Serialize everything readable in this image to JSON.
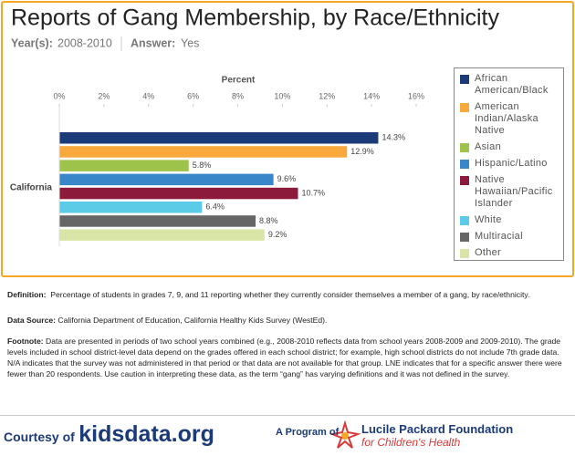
{
  "chart_data": {
    "type": "hbar",
    "title": "Reports of Gang Membership, by Race/Ethnicity",
    "subtitle_year_label": "Year(s):",
    "subtitle_year": "2008-2010",
    "subtitle_answer_label": "Answer:",
    "subtitle_answer": "Yes",
    "x_label": "Percent",
    "categories": [
      "California"
    ],
    "series": [
      {
        "name": "African American/Black",
        "color": "#1b3a78",
        "values": [
          14.3
        ],
        "value_labels": [
          "14.3%"
        ]
      },
      {
        "name": "American Indian/Alaska Native",
        "color": "#f9a93b",
        "values": [
          12.9
        ],
        "value_labels": [
          "12.9%"
        ]
      },
      {
        "name": "Asian",
        "color": "#9dc34a",
        "values": [
          5.8
        ],
        "value_labels": [
          "5.8%"
        ]
      },
      {
        "name": "Hispanic/Latino",
        "color": "#3987c8",
        "values": [
          9.6
        ],
        "value_labels": [
          "9.6%"
        ]
      },
      {
        "name": "Native Hawaiian/Pacific Islander",
        "color": "#8c1b3b",
        "values": [
          10.7
        ],
        "value_labels": [
          "10.7%"
        ]
      },
      {
        "name": "White",
        "color": "#5ccbe8",
        "values": [
          6.4
        ],
        "value_labels": [
          "6.4%"
        ]
      },
      {
        "name": "Multiracial",
        "color": "#666666",
        "values": [
          8.8
        ],
        "value_labels": [
          "8.8%"
        ]
      },
      {
        "name": "Other",
        "color": "#d9e5a6",
        "values": [
          9.2
        ],
        "value_labels": [
          "9.2%"
        ]
      }
    ],
    "xlim": [
      0,
      16
    ],
    "xticks": [
      {
        "value": 0,
        "label": "0%"
      },
      {
        "value": 2,
        "label": "2%"
      },
      {
        "value": 4,
        "label": "4%"
      },
      {
        "value": 6,
        "label": "6%"
      },
      {
        "value": 8,
        "label": "8%"
      },
      {
        "value": 10,
        "label": "10%"
      },
      {
        "value": 12,
        "label": "12%"
      },
      {
        "value": 14,
        "label": "14%"
      },
      {
        "value": 16,
        "label": "16%"
      }
    ],
    "grid": false
  },
  "notes": {
    "definition_label": "Definition:",
    "definition": "Percentage of students in grades 7, 9, and 11 reporting whether they currently consider themselves a member of a gang, by race/ethnicity.",
    "source_label": "Data Source:",
    "source": "California Department of Education, California Healthy Kids Survey (WestEd).",
    "footnote_label": "Footnote:",
    "footnote": "Data are presented in periods of two school years combined (e.g., 2008-2010 reflects data from school years 2008-2009 and 2009-2010). The grade levels included in school district-level data depend on the grades offered in each school district; for example, high school districts do not include 7th grade data. N/A indicates that the survey was not administered in that period or that data are not available for that group. LNE indicates that for a specific answer there were fewer than 20 respondents. Use caution in interpreting these data, as the term “gang” has varying definitions and it was not defined in the survey."
  },
  "footer": {
    "courtesy": "Courtesy of",
    "site": "kidsdata.org",
    "program": "A Program of",
    "org": "Lucile Packard Foundation",
    "org_sub": "for Children's Health"
  }
}
